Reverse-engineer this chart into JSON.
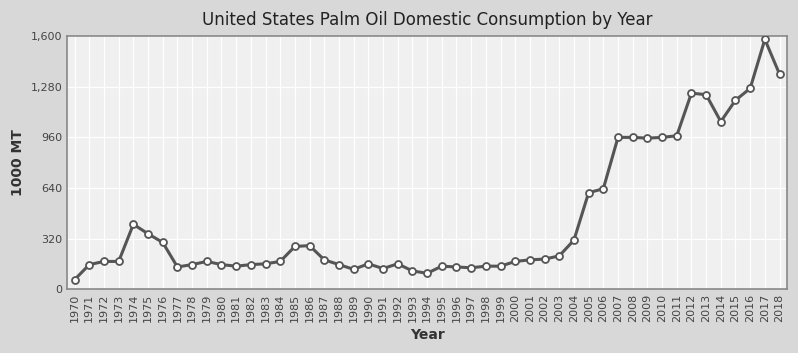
{
  "title": "United States Palm Oil Domestic Consumption by Year",
  "xlabel": "Year",
  "ylabel": "1000 MT",
  "years": [
    1970,
    1971,
    1972,
    1973,
    1974,
    1975,
    1976,
    1977,
    1978,
    1979,
    1980,
    1981,
    1982,
    1983,
    1984,
    1985,
    1986,
    1987,
    1988,
    1989,
    1990,
    1991,
    1992,
    1993,
    1994,
    1995,
    1996,
    1997,
    1998,
    1999,
    2000,
    2001,
    2002,
    2003,
    2004,
    2005,
    2006,
    2007,
    2008,
    2009,
    2010,
    2011,
    2012,
    2013,
    2014,
    2015,
    2016,
    2017,
    2018
  ],
  "values": [
    60,
    155,
    175,
    175,
    410,
    350,
    295,
    140,
    155,
    175,
    155,
    145,
    155,
    160,
    175,
    270,
    275,
    185,
    155,
    125,
    160,
    130,
    160,
    115,
    100,
    145,
    140,
    135,
    145,
    145,
    175,
    185,
    190,
    210,
    310,
    610,
    635,
    960,
    960,
    955,
    960,
    970,
    1240,
    1230,
    1060,
    1195,
    1270,
    1580,
    1360
  ],
  "ylim": [
    0,
    1600
  ],
  "yticks": [
    0,
    320,
    640,
    960,
    1280,
    1600
  ],
  "ytick_labels": [
    "0",
    "320",
    "640",
    "960",
    "1,280",
    "1,600"
  ],
  "line_color": "#555555",
  "marker_color": "#ffffff",
  "marker_edge_color": "#555555",
  "fig_bg_color": "#d8d8d8",
  "plot_bg_color": "#f0f0f0",
  "grid_color": "#ffffff",
  "spine_color": "#888888",
  "title_fontsize": 12,
  "axis_label_fontsize": 10,
  "tick_fontsize": 8
}
